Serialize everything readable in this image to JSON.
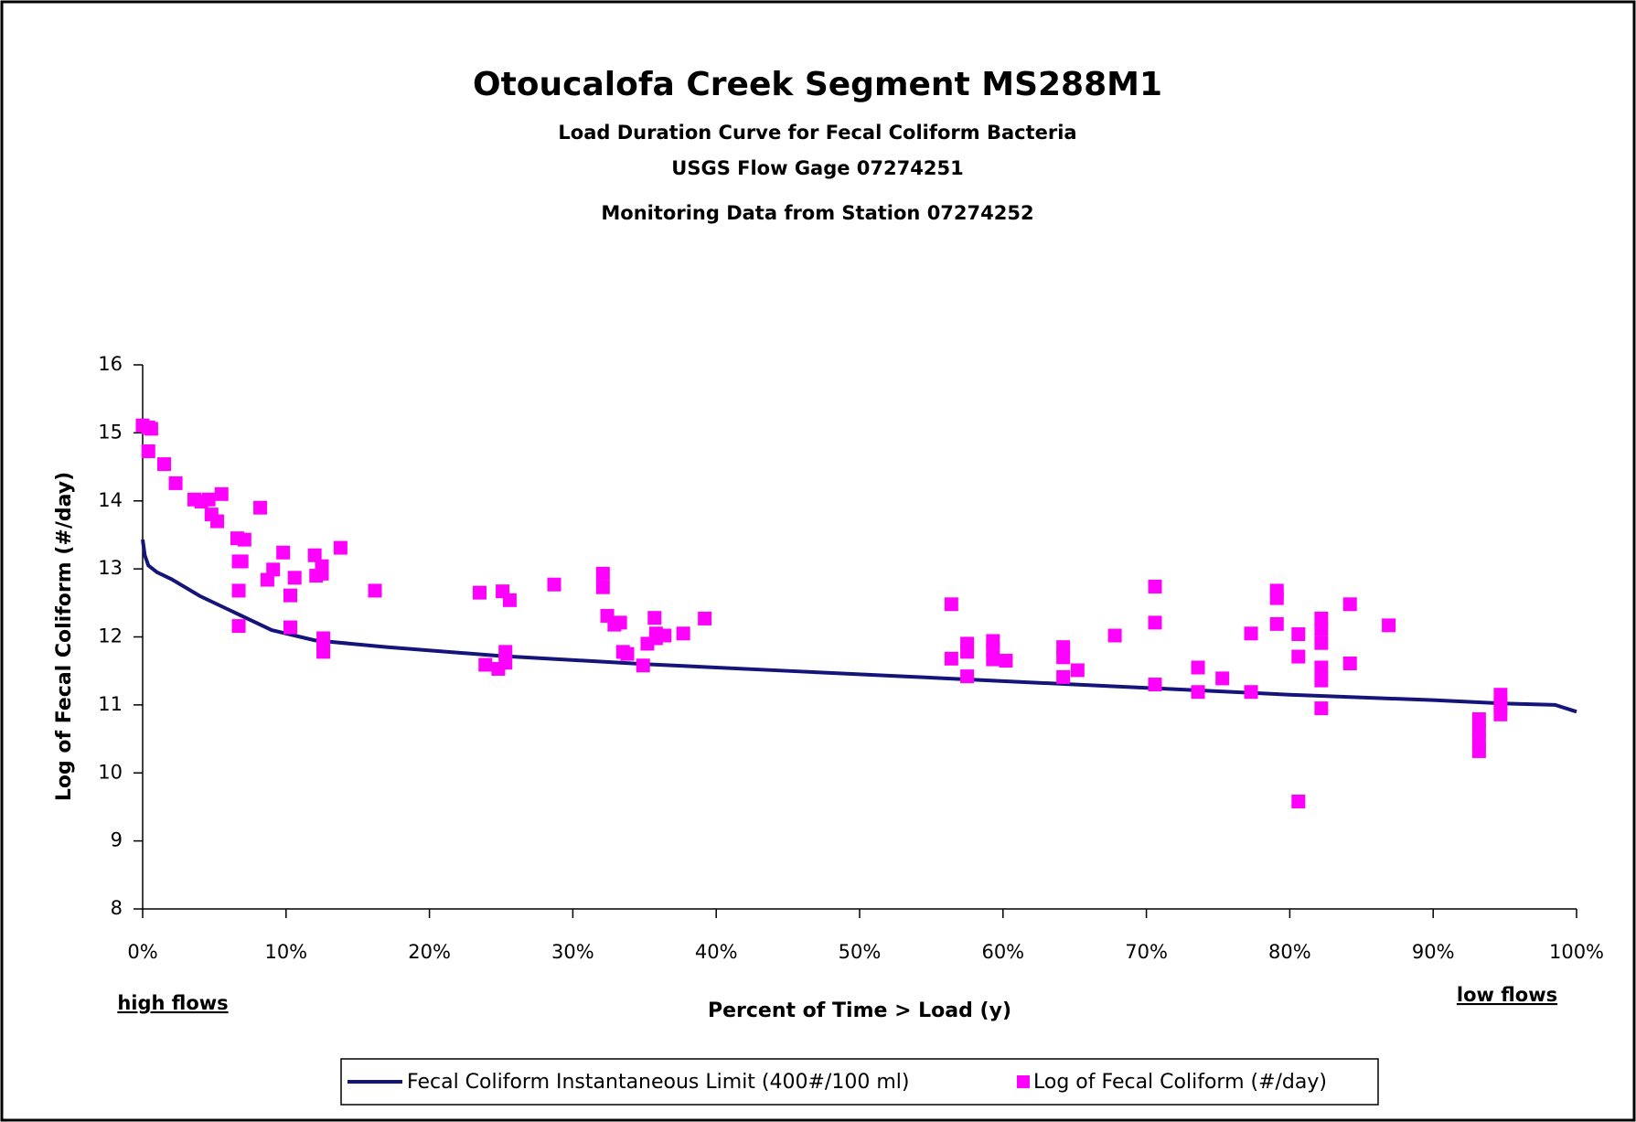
{
  "chart_data": {
    "type": "scatter",
    "title": "Otoucalofa Creek Segment MS288M1",
    "subtitles": [
      "Load Duration Curve for Fecal Coliform Bacteria",
      "USGS Flow Gage 07274251",
      "Monitoring Data from Station 07274252"
    ],
    "x_label": "Percent of Time > Load (y)",
    "y_label": "Log of Fecal Coliform (#/day)",
    "annotations": [
      "high flows",
      "low flows"
    ],
    "xlim": [
      0,
      100
    ],
    "xticks": [
      {
        "value": 0,
        "label": "0%"
      },
      {
        "value": 10,
        "label": "10%"
      },
      {
        "value": 20,
        "label": "20%"
      },
      {
        "value": 30,
        "label": "30%"
      },
      {
        "value": 40,
        "label": "40%"
      },
      {
        "value": 50,
        "label": "50%"
      },
      {
        "value": 60,
        "label": "60%"
      },
      {
        "value": 70,
        "label": "70%"
      },
      {
        "value": 80,
        "label": "80%"
      },
      {
        "value": 90,
        "label": "90%"
      },
      {
        "value": 100,
        "label": "100%"
      }
    ],
    "ylim": [
      8,
      16
    ],
    "yticks": [
      8,
      9,
      10,
      11,
      12,
      13,
      14,
      15,
      16
    ],
    "legend": "bottom",
    "series": [
      {
        "name": "Fecal Coliform Instantaneous Limit (400#/100 ml)",
        "color": "#14147a",
        "type": "line",
        "x": [
          0,
          0.15,
          0.4,
          1,
          2,
          4,
          6,
          9,
          12,
          17,
          25,
          35,
          45,
          53,
          60,
          70,
          80,
          90,
          95,
          98.5,
          100
        ],
        "values": [
          13.43,
          13.2,
          13.05,
          12.95,
          12.85,
          12.6,
          12.4,
          12.1,
          11.95,
          11.85,
          11.72,
          11.6,
          11.5,
          11.42,
          11.35,
          11.25,
          11.15,
          11.07,
          11.02,
          11.0,
          10.9
        ]
      },
      {
        "name": "Log of Fecal Coliform (#/day)",
        "color": "#ff00ff",
        "type": "scatter",
        "x": [
          0,
          0.4,
          0.6,
          0.4,
          1.5,
          2.3,
          3.6,
          4.1,
          4.6,
          4.8,
          5.2,
          5.5,
          8.2,
          6.6,
          7.1,
          6.7,
          6.9,
          6.7,
          6.7,
          8.7,
          9.1,
          9.8,
          10.6,
          10.3,
          10.3,
          12.0,
          12.1,
          12.5,
          12.5,
          12.6,
          12.6,
          12.6,
          13.8,
          16.2,
          23.5,
          23.9,
          24.8,
          25.1,
          25.3,
          25.3,
          25.6,
          28.7,
          32.1,
          32.1,
          32.4,
          32.9,
          33.3,
          33.5,
          33.8,
          34.9,
          35.2,
          35.7,
          35.8,
          35.8,
          36.4,
          37.7,
          39.2,
          56.4,
          56.4,
          57.5,
          57.5,
          57.5,
          59.3,
          59.3,
          59.3,
          60.2,
          64.2,
          64.2,
          64.2,
          65.2,
          67.8,
          70.6,
          70.6,
          70.6,
          73.6,
          73.6,
          75.3,
          77.3,
          77.3,
          79.1,
          79.1,
          79.1,
          80.6,
          80.6,
          80.6,
          82.2,
          82.2,
          82.2,
          82.2,
          82.2,
          82.2,
          84.2,
          84.2,
          86.9,
          93.2,
          93.2,
          93.2,
          93.2,
          94.7,
          94.7,
          94.7
        ],
        "values": [
          15.11,
          15.08,
          15.06,
          14.73,
          14.54,
          14.26,
          14.02,
          13.99,
          14.02,
          13.8,
          13.7,
          14.1,
          13.9,
          13.45,
          13.43,
          13.11,
          13.11,
          12.68,
          12.16,
          12.84,
          12.99,
          13.24,
          12.87,
          12.61,
          12.14,
          13.2,
          12.9,
          13.04,
          12.93,
          11.98,
          11.87,
          11.78,
          13.31,
          12.68,
          12.65,
          11.59,
          11.53,
          12.67,
          11.78,
          11.62,
          12.54,
          12.77,
          12.93,
          12.73,
          12.31,
          12.18,
          12.21,
          11.78,
          11.75,
          11.58,
          11.9,
          12.28,
          12.05,
          11.98,
          12.02,
          12.05,
          12.27,
          12.48,
          11.68,
          11.9,
          11.78,
          11.42,
          11.94,
          11.82,
          11.67,
          11.65,
          11.85,
          11.7,
          11.41,
          11.51,
          12.02,
          12.74,
          12.21,
          11.3,
          11.55,
          11.19,
          11.39,
          12.05,
          11.19,
          12.68,
          12.57,
          12.19,
          12.04,
          11.71,
          9.58,
          12.27,
          12.11,
          11.91,
          11.55,
          11.36,
          10.95,
          12.48,
          11.61,
          12.17,
          10.79,
          10.62,
          10.47,
          10.32,
          11.15,
          11.0,
          10.86
        ]
      }
    ]
  }
}
